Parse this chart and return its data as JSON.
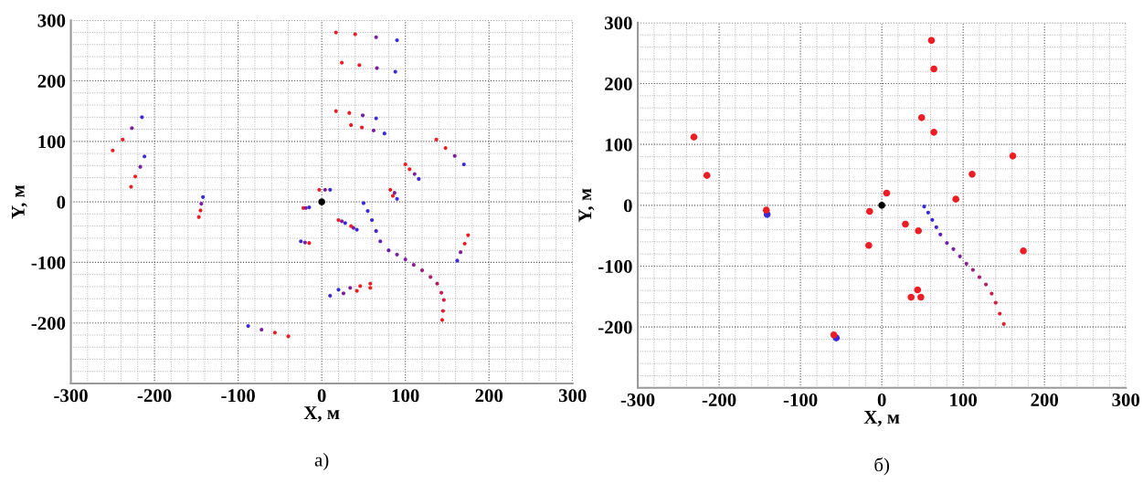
{
  "chart_data": [
    {
      "type": "scatter",
      "xlabel": "X, м",
      "ylabel": "Y, м",
      "xlim": [
        -300,
        300
      ],
      "ylim": [
        -300,
        300
      ],
      "xticks": [
        -300,
        -200,
        -100,
        0,
        100,
        200,
        300
      ],
      "yticks": [
        {
          "value": -300,
          "label": null
        },
        -200,
        -100,
        0,
        100,
        200,
        300
      ],
      "grid": true,
      "marker": "circle",
      "annotations": [
        "а)"
      ],
      "series": [
        {
          "x": [
            17,
            40,
            65,
            90
          ],
          "values": [
            280,
            277,
            272,
            267
          ],
          "colors": [
            "#ee1c24",
            "#ee1c24",
            "#7a1fa0",
            "#3a2ad8"
          ]
        },
        {
          "x": [
            24,
            45,
            66,
            88
          ],
          "values": [
            230,
            226,
            221,
            215
          ],
          "colors": [
            "#ee1c24",
            "#ee1c24",
            "#7a1fa0",
            "#3a2ad8"
          ]
        },
        {
          "x": [
            17,
            33,
            49,
            65
          ],
          "values": [
            150,
            147,
            143,
            138
          ],
          "colors": [
            "#ee1c24",
            "#ee1c24",
            "#7a1fa0",
            "#3a2ad8"
          ]
        },
        {
          "x": [
            35,
            48,
            62,
            75
          ],
          "values": [
            127,
            123,
            118,
            113
          ],
          "colors": [
            "#ee1c24",
            "#ee1c24",
            "#7a1fa0",
            "#3a2ad8"
          ]
        },
        {
          "x": [
            137,
            148,
            159,
            170
          ],
          "values": [
            103,
            89,
            76,
            62
          ],
          "colors": [
            "#ee1c24",
            "#ee1c24",
            "#7a1fa0",
            "#3a2ad8"
          ]
        },
        {
          "x": [
            100,
            105,
            111,
            116
          ],
          "values": [
            62,
            54,
            46,
            38
          ],
          "colors": [
            "#ee1c24",
            "#ee1c24",
            "#7a1fa0",
            "#3a2ad8"
          ]
        },
        {
          "x": [
            82,
            85,
            87,
            90
          ],
          "values": [
            20,
            10,
            15,
            5
          ],
          "colors": [
            "#ee1c24",
            "#ee1c24",
            "#7a1fa0",
            "#3a2ad8"
          ]
        },
        {
          "x": [
            -250,
            -238,
            -227,
            -215
          ],
          "values": [
            85,
            103,
            122,
            140
          ],
          "colors": [
            "#ee1c24",
            "#ee1c24",
            "#7a1fa0",
            "#3a2ad8"
          ]
        },
        {
          "x": [
            -228,
            -223,
            -217,
            -212
          ],
          "values": [
            25,
            42,
            58,
            75
          ],
          "colors": [
            "#ee1c24",
            "#ee1c24",
            "#7a1fa0",
            "#3a2ad8"
          ]
        },
        {
          "x": [
            -147,
            -145,
            -144,
            -142
          ],
          "values": [
            -25,
            -14,
            -3,
            8
          ],
          "colors": [
            "#ee1c24",
            "#ee1c24",
            "#7a1fa0",
            "#3a2ad8"
          ]
        },
        {
          "x": [
            -22,
            -19,
            -15
          ],
          "values": [
            -10,
            -10,
            -9
          ],
          "colors": [
            "#ee1c24",
            "#7a1fa0",
            "#3a2ad8"
          ]
        },
        {
          "x": [
            -3,
            4,
            10
          ],
          "values": [
            20,
            20,
            20
          ],
          "colors": [
            "#ee1c24",
            "#7a1fa0",
            "#3a2ad8"
          ]
        },
        {
          "x": [
            -25,
            -20,
            -15
          ],
          "values": [
            -65,
            -67,
            -68
          ],
          "colors": [
            "#3a2ad8",
            "#7a1fa0",
            "#ee1c24"
          ]
        },
        {
          "x": [
            20,
            24,
            28
          ],
          "values": [
            -30,
            -32,
            -35
          ],
          "colors": [
            "#ee1c24",
            "#7a1fa0",
            "#3a2ad8"
          ]
        },
        {
          "x": [
            35,
            38,
            42
          ],
          "values": [
            -40,
            -43,
            -46
          ],
          "colors": [
            "#ee1c24",
            "#7a1fa0",
            "#3a2ad8"
          ]
        },
        {
          "x": [
            175,
            171,
            166,
            162
          ],
          "values": [
            -55,
            -69,
            -83,
            -97
          ],
          "colors": [
            "#ee1c24",
            "#ee1c24",
            "#7a1fa0",
            "#3a2ad8"
          ]
        },
        {
          "x": [
            -88,
            -72,
            -56,
            -40
          ],
          "values": [
            -205,
            -211,
            -216,
            -222
          ],
          "colors": [
            "#3a2ad8",
            "#7a1fa0",
            "#ee1c24",
            "#ee1c24"
          ]
        },
        {
          "x": [
            10,
            26,
            42,
            58
          ],
          "values": [
            -155,
            -151,
            -147,
            -142
          ],
          "colors": [
            "#3a2ad8",
            "#7a1fa0",
            "#ee1c24",
            "#ee1c24"
          ]
        },
        {
          "x": [
            20,
            34,
            46,
            58
          ],
          "values": [
            -145,
            -142,
            -139,
            -135
          ],
          "colors": [
            "#3a2ad8",
            "#7a1fa0",
            "#ee1c24",
            "#ee1c24"
          ]
        },
        {
          "x": [
            50,
            55,
            60,
            65,
            70,
            80,
            90,
            100,
            110,
            120,
            130,
            138,
            143,
            146,
            145,
            144
          ],
          "values": [
            -2,
            -15,
            -30,
            -48,
            -65,
            -80,
            -87,
            -95,
            -104,
            -113,
            -124,
            -135,
            -150,
            -162,
            -180,
            -195
          ],
          "colors": [
            "#3a2ad8",
            "#3a2ad8",
            "#3a2ad8",
            "#4a24c8",
            "#5a22b8",
            "#6a20a8",
            "#7a1fa0",
            "#7a1fa0",
            "#8a1e90",
            "#9a1d80",
            "#aa1c70",
            "#b81c60",
            "#c81c50",
            "#d81c40",
            "#e41c30",
            "#ee1c24"
          ]
        },
        {
          "x": [
            0
          ],
          "values": [
            0
          ],
          "color": "#000000"
        }
      ]
    },
    {
      "type": "scatter",
      "xlabel": "X, м",
      "ylabel": "Y, м",
      "xlim": [
        -300,
        300
      ],
      "ylim": [
        -300,
        300
      ],
      "xticks": [
        -300,
        -200,
        -100,
        0,
        100,
        200,
        300
      ],
      "yticks": [
        {
          "value": -300,
          "label": null
        },
        -200,
        -100,
        0,
        100,
        200,
        300
      ],
      "grid": true,
      "marker": "circle",
      "annotations": [
        "б)"
      ],
      "series": [
        {
          "x": [
            52,
            57,
            62,
            67,
            72,
            80,
            88,
            96,
            104,
            112,
            120,
            128,
            135,
            140,
            145,
            150
          ],
          "values": [
            -2,
            -12,
            -24,
            -36,
            -48,
            -62,
            -72,
            -84,
            -96,
            -106,
            -118,
            -130,
            -145,
            -160,
            -178,
            -195
          ],
          "colors": [
            "#3a2ad8",
            "#3a2ad8",
            "#3a2ad8",
            "#4a24c8",
            "#5a22b8",
            "#6a20a8",
            "#7a1fa0",
            "#7a1fa0",
            "#8a1e90",
            "#9a1d80",
            "#aa1c70",
            "#b81c60",
            "#c81c50",
            "#d81c40",
            "#e41c30",
            "#ee1c24"
          ]
        },
        {
          "x": [
            -141,
            -56
          ],
          "values": [
            -15,
            -218
          ],
          "color": "#3a2ad8"
        },
        {
          "x": [
            61,
            64,
            49,
            64,
            161,
            111,
            91,
            6,
            -15,
            -16,
            29,
            45,
            174,
            44,
            36,
            48,
            -231,
            -215,
            -142,
            -59
          ],
          "values": [
            271,
            224,
            144,
            120,
            81,
            51,
            10,
            20,
            -10,
            -66,
            -31,
            -42,
            -75,
            -139,
            -151,
            -151,
            112,
            49,
            -8,
            -213
          ],
          "color": "#ee1c24"
        },
        {
          "x": [
            0
          ],
          "values": [
            0
          ],
          "color": "#000000"
        }
      ]
    }
  ]
}
